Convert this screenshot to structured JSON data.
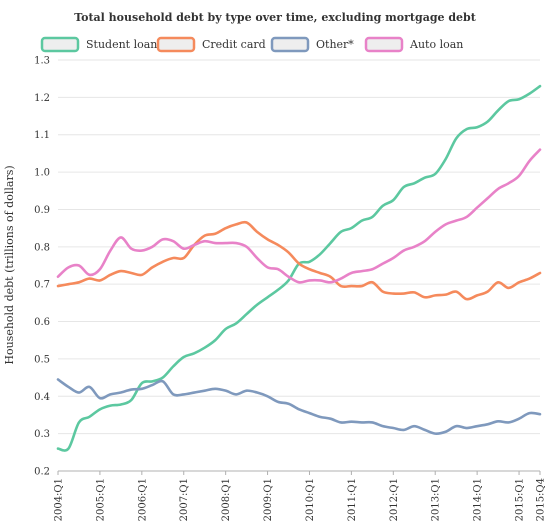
{
  "chart_data": {
    "type": "line",
    "title": "Total household debt by type over time, excluding mortgage debt",
    "ylabel": "Household debt (trillions of dollars)",
    "xlabel": "",
    "ylim": [
      0.2,
      1.3
    ],
    "yticks": [
      0.2,
      0.3,
      0.4,
      0.5,
      0.6,
      0.7,
      0.8,
      0.9,
      1.0,
      1.1,
      1.2,
      1.3
    ],
    "ytick_labels": [
      "0.2",
      "0.3",
      "0.4",
      "0.5",
      "0.6",
      "0.7",
      "0.8",
      "0.9",
      "1.0",
      "1.1",
      "1.2",
      "1.3"
    ],
    "xticks": [
      "2004:Q1",
      "2005:Q1",
      "2006:Q1",
      "2007:Q1",
      "2008:Q1",
      "2009:Q1",
      "2010:Q1",
      "2011:Q1",
      "2012:Q1",
      "2013:Q1",
      "2014:Q1",
      "2015:Q1",
      "2015:Q4"
    ],
    "legend_position": "top",
    "grid": true,
    "series": [
      {
        "name": "Student loan",
        "color": "#5cc8a0",
        "values": [
          0.26,
          0.26,
          0.33,
          0.345,
          0.365,
          0.375,
          0.378,
          0.39,
          0.435,
          0.44,
          0.45,
          0.48,
          0.505,
          0.515,
          0.53,
          0.55,
          0.58,
          0.595,
          0.62,
          0.645,
          0.665,
          0.685,
          0.71,
          0.755,
          0.76,
          0.78,
          0.81,
          0.84,
          0.85,
          0.87,
          0.88,
          0.91,
          0.925,
          0.96,
          0.97,
          0.985,
          0.995,
          1.035,
          1.09,
          1.115,
          1.12,
          1.135,
          1.165,
          1.19,
          1.195,
          1.21,
          1.23
        ]
      },
      {
        "name": "Credit card",
        "color": "#f58a5c",
        "values": [
          0.695,
          0.7,
          0.705,
          0.715,
          0.71,
          0.725,
          0.735,
          0.73,
          0.725,
          0.745,
          0.76,
          0.77,
          0.77,
          0.805,
          0.83,
          0.835,
          0.85,
          0.86,
          0.865,
          0.84,
          0.82,
          0.805,
          0.785,
          0.755,
          0.74,
          0.73,
          0.72,
          0.695,
          0.695,
          0.695,
          0.705,
          0.68,
          0.675,
          0.675,
          0.678,
          0.665,
          0.67,
          0.672,
          0.68,
          0.66,
          0.67,
          0.68,
          0.705,
          0.69,
          0.705,
          0.715,
          0.73
        ]
      },
      {
        "name": "Other*",
        "color": "#7f99bd",
        "values": [
          0.445,
          0.425,
          0.41,
          0.425,
          0.395,
          0.405,
          0.41,
          0.418,
          0.42,
          0.43,
          0.44,
          0.405,
          0.405,
          0.41,
          0.415,
          0.42,
          0.415,
          0.405,
          0.415,
          0.41,
          0.4,
          0.385,
          0.38,
          0.365,
          0.355,
          0.345,
          0.34,
          0.33,
          0.332,
          0.33,
          0.33,
          0.32,
          0.315,
          0.31,
          0.32,
          0.31,
          0.3,
          0.305,
          0.32,
          0.315,
          0.32,
          0.325,
          0.333,
          0.33,
          0.34,
          0.355,
          0.352
        ]
      },
      {
        "name": "Auto loan",
        "color": "#e882c8",
        "values": [
          0.72,
          0.745,
          0.75,
          0.725,
          0.74,
          0.79,
          0.825,
          0.795,
          0.79,
          0.8,
          0.82,
          0.815,
          0.795,
          0.805,
          0.815,
          0.81,
          0.81,
          0.81,
          0.8,
          0.77,
          0.745,
          0.74,
          0.72,
          0.705,
          0.71,
          0.71,
          0.705,
          0.715,
          0.73,
          0.735,
          0.74,
          0.755,
          0.77,
          0.79,
          0.8,
          0.815,
          0.84,
          0.86,
          0.87,
          0.88,
          0.905,
          0.93,
          0.955,
          0.97,
          0.99,
          1.03,
          1.06
        ]
      }
    ]
  }
}
